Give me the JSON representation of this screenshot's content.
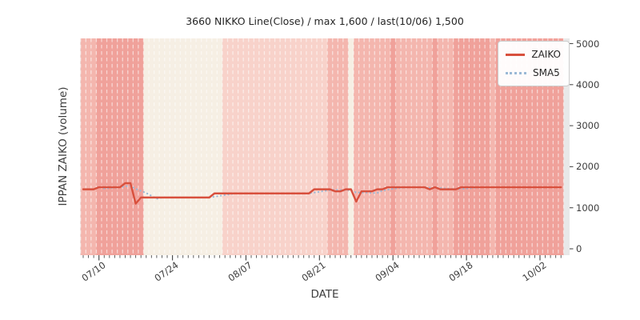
{
  "title": "3660 NIKKO Line(Close) / max 1,600 / last(10/06) 1,500",
  "axes": {
    "xlabel": "DATE",
    "ylabel": "IPPAN ZAIKO (volume)",
    "y_ticks": [
      0,
      1000,
      2000,
      3000,
      4000,
      5000
    ],
    "x_major_ticks": [
      {
        "index": 3,
        "label": "07/10"
      },
      {
        "index": 17,
        "label": "07/24"
      },
      {
        "index": 31,
        "label": "08/07"
      },
      {
        "index": 45,
        "label": "08/21"
      },
      {
        "index": 59,
        "label": "09/04"
      },
      {
        "index": 73,
        "label": "09/18"
      },
      {
        "index": 87,
        "label": "10/02"
      }
    ]
  },
  "legend": {
    "items": [
      {
        "label": "ZAIKO",
        "style": "solid",
        "color": "#d8503d"
      },
      {
        "label": "SMA5",
        "style": "dotted",
        "color": "#9bb9d6"
      }
    ]
  },
  "colors": {
    "zaiko_line": "#d8503d",
    "sma_line": "#9bb9d6",
    "plot_margin_bg": "#e8e8e8",
    "day_separator": "rgba(255,255,255,0.55)",
    "tick_mark": "#4d4d4d",
    "text": "#3d3d3d"
  },
  "chart_data": {
    "type": "line",
    "title": "3660 NIKKO Line(Close) / max 1,600 / last(10/06) 1,500",
    "xlabel": "DATE",
    "ylabel": "IPPAN ZAIKO (volume)",
    "ylim": [
      0,
      5000
    ],
    "grid": "vertical-day-separators",
    "legend_position": "upper right",
    "x": [
      "07/07",
      "07/08",
      "07/09",
      "07/10",
      "07/11",
      "07/12",
      "07/13",
      "07/14",
      "07/15",
      "07/16",
      "07/17",
      "07/18",
      "07/19",
      "07/20",
      "07/21",
      "07/22",
      "07/23",
      "07/24",
      "07/25",
      "07/26",
      "07/27",
      "07/28",
      "07/29",
      "07/30",
      "07/31",
      "08/01",
      "08/02",
      "08/03",
      "08/04",
      "08/05",
      "08/06",
      "08/07",
      "08/08",
      "08/09",
      "08/10",
      "08/11",
      "08/12",
      "08/13",
      "08/14",
      "08/15",
      "08/16",
      "08/17",
      "08/18",
      "08/19",
      "08/20",
      "08/21",
      "08/22",
      "08/23",
      "08/24",
      "08/25",
      "08/26",
      "08/27",
      "08/28",
      "08/29",
      "08/30",
      "08/31",
      "09/01",
      "09/02",
      "09/03",
      "09/04",
      "09/05",
      "09/06",
      "09/07",
      "09/08",
      "09/09",
      "09/10",
      "09/11",
      "09/12",
      "09/13",
      "09/14",
      "09/15",
      "09/16",
      "09/17",
      "09/18",
      "09/19",
      "09/20",
      "09/21",
      "09/22",
      "09/23",
      "09/24",
      "09/25",
      "09/26",
      "09/27",
      "09/28",
      "09/29",
      "09/30",
      "10/01",
      "10/02",
      "10/03",
      "10/04",
      "10/05",
      "10/06"
    ],
    "series": [
      {
        "name": "ZAIKO",
        "values": [
          1450,
          1450,
          1450,
          1500,
          1500,
          1500,
          1500,
          1500,
          1600,
          1600,
          1100,
          1250,
          1250,
          1250,
          1250,
          1250,
          1250,
          1250,
          1250,
          1250,
          1250,
          1250,
          1250,
          1250,
          1250,
          1350,
          1350,
          1350,
          1350,
          1350,
          1350,
          1350,
          1350,
          1350,
          1350,
          1350,
          1350,
          1350,
          1350,
          1350,
          1350,
          1350,
          1350,
          1350,
          1450,
          1450,
          1450,
          1450,
          1400,
          1400,
          1450,
          1450,
          1150,
          1400,
          1400,
          1400,
          1450,
          1450,
          1500,
          1500,
          1500,
          1500,
          1500,
          1500,
          1500,
          1500,
          1450,
          1500,
          1450,
          1450,
          1450,
          1450,
          1500,
          1500,
          1500,
          1500,
          1500,
          1500,
          1500,
          1500,
          1500,
          1500,
          1500,
          1500,
          1500,
          1500,
          1500,
          1500,
          1500,
          1500,
          1500,
          1500
        ]
      },
      {
        "name": "SMA5",
        "derived": "rolling mean of ZAIKO over 5 days (dotted)"
      }
    ],
    "background_heat": {
      "palette": {
        "0": "#f6efe4",
        "1": "#f8d2ca",
        "2": "#f4b6ae",
        "3": "#f0a19a"
      },
      "levels": [
        2,
        2,
        2,
        3,
        3,
        3,
        3,
        3,
        3,
        3,
        3,
        3,
        0,
        0,
        0,
        0,
        0,
        0,
        0,
        0,
        0,
        0,
        0,
        0,
        0,
        0,
        0,
        1,
        1,
        1,
        1,
        1,
        1,
        1,
        1,
        1,
        1,
        1,
        1,
        1,
        1,
        1,
        1,
        1,
        1,
        1,
        1,
        2,
        2,
        2,
        2,
        0,
        2,
        2,
        2,
        2,
        2,
        2,
        2,
        3,
        2,
        2,
        2,
        2,
        2,
        2,
        2,
        3,
        2,
        2,
        2,
        3,
        3,
        3,
        3,
        3,
        3,
        3,
        2,
        3,
        3,
        3,
        3,
        3,
        3,
        3,
        3,
        3,
        3,
        3,
        3,
        3
      ]
    }
  }
}
